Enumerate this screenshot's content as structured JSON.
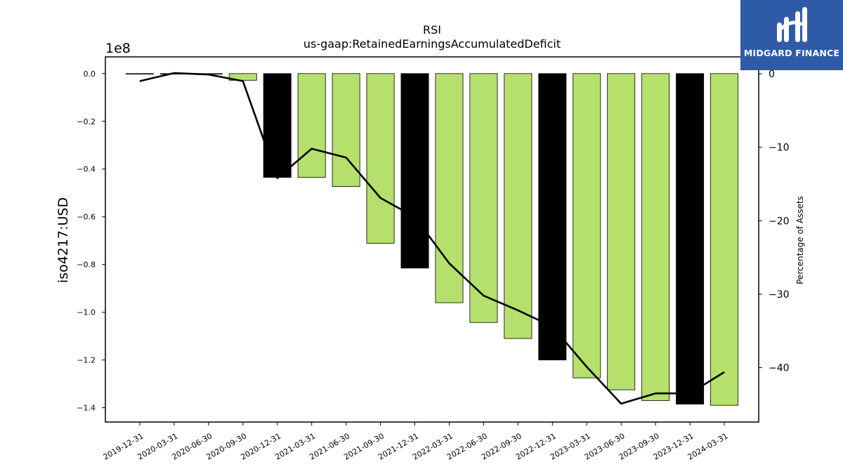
{
  "chart_data": {
    "type": "bar",
    "title": "RSI",
    "subtitle": "us-gaap:RetainedEarningsAccumulatedDeficit",
    "ylabel": "iso4217:USD",
    "y2label": "Percentage of Assets",
    "y_offset_label": "1e8",
    "ylim": [
      -1.46,
      0.07
    ],
    "y2lim": [
      -47.4,
      2.3
    ],
    "yticks": [
      0.0,
      -0.2,
      -0.4,
      -0.6,
      -0.8,
      -1.0,
      -1.2,
      -1.4
    ],
    "yticklabels": [
      "0.0",
      "−0.2",
      "−0.4",
      "−0.6",
      "−0.8",
      "−1.0",
      "−1.2",
      "−1.4"
    ],
    "y2ticks": [
      0,
      -10,
      -20,
      -30,
      -40
    ],
    "y2ticklabels": [
      "0",
      "−10",
      "−20",
      "−30",
      "−40"
    ],
    "grid": false,
    "categories": [
      "2019-12-31",
      "2020-03-31",
      "2020-06-30",
      "2020-09-30",
      "2020-12-31",
      "2021-03-31",
      "2021-06-30",
      "2021-09-30",
      "2021-12-31",
      "2022-03-31",
      "2022-06-30",
      "2022-09-30",
      "2022-12-31",
      "2023-03-31",
      "2023-06-30",
      "2023-09-30",
      "2023-12-31",
      "2024-03-31"
    ],
    "series": [
      {
        "values": [
          -0.001,
          -0.0005,
          -0.003,
          -0.028,
          -0.435,
          -0.435,
          -0.473,
          -0.711,
          -0.815,
          -0.96,
          -1.043,
          -1.11,
          -1.2,
          -1.275,
          -1.325,
          -1.37,
          -1.385,
          -1.39
        ],
        "colors": [
          "#b5e06b",
          "#b5e06b",
          "#b5e06b",
          "#b5e06b",
          "#000000",
          "#b5e06b",
          "#b5e06b",
          "#b5e06b",
          "#000000",
          "#b5e06b",
          "#b5e06b",
          "#b5e06b",
          "#000000",
          "#b5e06b",
          "#b5e06b",
          "#b5e06b",
          "#000000",
          "#b5e06b"
        ]
      },
      {
        "type": "line",
        "axis": "right",
        "values": [
          -1.0,
          0.1,
          -0.1,
          -1.0,
          -14.2,
          -10.2,
          -11.4,
          -16.9,
          -19.5,
          -25.8,
          -30.2,
          -32.2,
          -34.4,
          -39.9,
          -44.9,
          -43.5,
          -43.5,
          -40.6
        ]
      }
    ]
  },
  "logo": {
    "text": "MIDGARD FINANCE",
    "color": "#2f5aa8"
  }
}
